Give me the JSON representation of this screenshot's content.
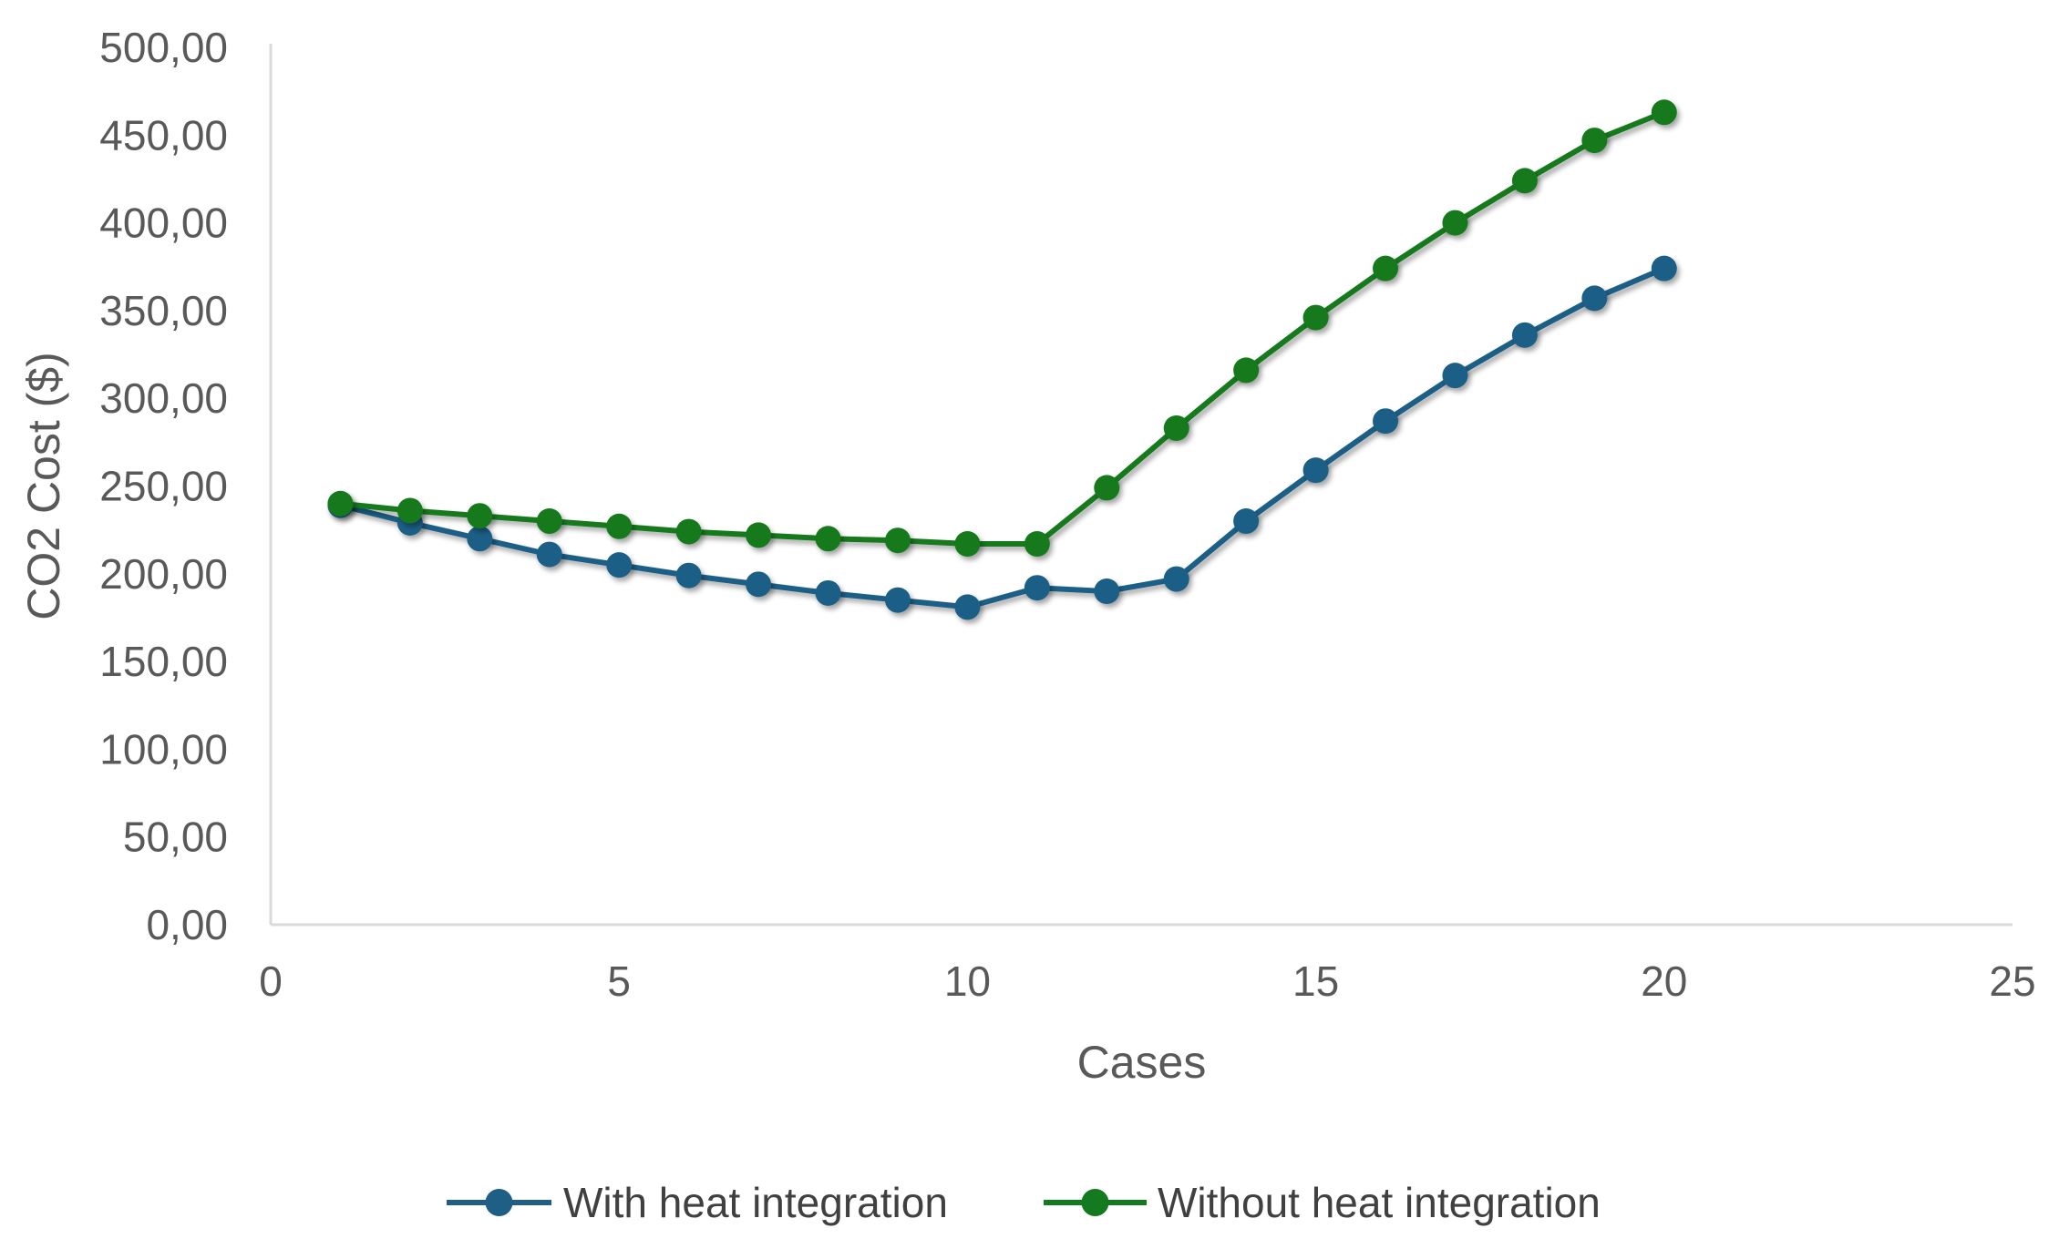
{
  "chart_data": {
    "type": "line",
    "title": "",
    "xlabel": "Cases",
    "ylabel": "CO2 Cost ($)",
    "xlim": [
      0,
      25
    ],
    "ylim": [
      0,
      500
    ],
    "x_ticks": [
      "0",
      "5",
      "10",
      "15",
      "20",
      "25"
    ],
    "y_ticks": [
      "0,00",
      "50,00",
      "100,00",
      "150,00",
      "200,00",
      "250,00",
      "300,00",
      "350,00",
      "400,00",
      "450,00",
      "500,00"
    ],
    "grid": false,
    "legend_position": "bottom",
    "x": [
      1,
      2,
      3,
      4,
      5,
      6,
      7,
      8,
      9,
      10,
      11,
      12,
      13,
      14,
      15,
      16,
      17,
      18,
      19,
      20
    ],
    "series": [
      {
        "name": "With heat integration",
        "color": "#1f5f86",
        "values": [
          239,
          229,
          220,
          211,
          205,
          199,
          194,
          189,
          185,
          181,
          192,
          190,
          197,
          230,
          259,
          287,
          313,
          336,
          357,
          374
        ]
      },
      {
        "name": "Without heat integration",
        "color": "#137a1f",
        "values": [
          240,
          236,
          233,
          230,
          227,
          224,
          222,
          220,
          219,
          217,
          217,
          249,
          283,
          316,
          346,
          374,
          400,
          424,
          447,
          463
        ]
      }
    ]
  }
}
